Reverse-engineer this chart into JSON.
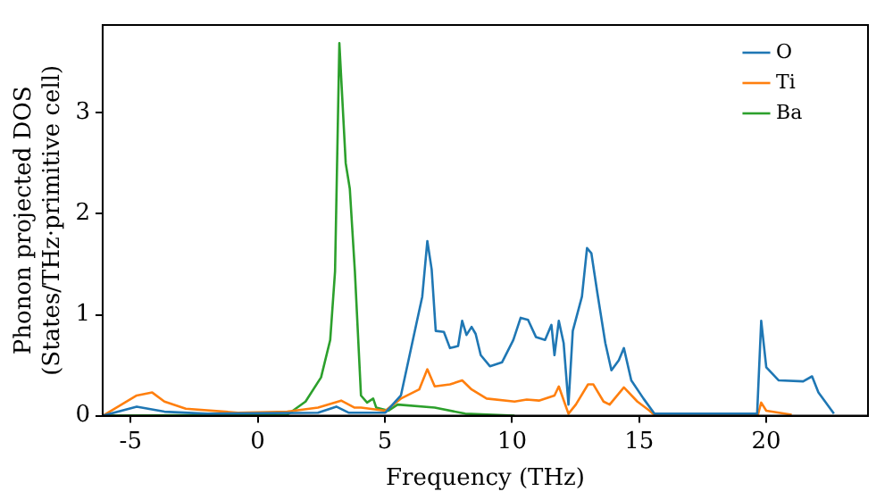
{
  "chart_data": {
    "type": "line",
    "xlabel": "Frequency (THz)",
    "ylabel": "Phonon projected DOS\n(States/THz·primitive cell)",
    "xlim": [
      -6.1,
      24
    ],
    "xticks": [
      -5,
      0,
      5,
      10,
      15,
      20
    ],
    "ylim": [
      0,
      3.87
    ],
    "yticks": [
      0,
      1,
      2,
      3
    ],
    "grid": false,
    "legend": "top right",
    "marker": "none",
    "line_style": "solid",
    "series": [
      {
        "name": "O",
        "color": "#1f77b4",
        "x": [
          -6.09,
          -4.76,
          -3.67,
          -1.98,
          2.37,
          3.09,
          3.57,
          5.02,
          5.63,
          6.23,
          6.47,
          6.67,
          6.84,
          7.0,
          7.32,
          7.56,
          7.88,
          8.04,
          8.21,
          8.41,
          8.57,
          8.77,
          9.13,
          9.61,
          10.05,
          10.34,
          10.63,
          10.94,
          11.3,
          11.55,
          11.67,
          11.84,
          12.03,
          12.22,
          12.39,
          12.75,
          12.95,
          13.12,
          13.36,
          13.67,
          13.91,
          14.2,
          14.4,
          14.69,
          15.17,
          15.6,
          19.64,
          19.8,
          20.0,
          20.49,
          21.45,
          21.8,
          22.05,
          22.66
        ],
        "values": [
          0.0,
          0.09,
          0.04,
          0.02,
          0.03,
          0.09,
          0.03,
          0.03,
          0.2,
          0.9,
          1.18,
          1.73,
          1.45,
          0.84,
          0.83,
          0.67,
          0.69,
          0.94,
          0.8,
          0.88,
          0.81,
          0.6,
          0.49,
          0.53,
          0.75,
          0.97,
          0.95,
          0.78,
          0.75,
          0.9,
          0.6,
          0.94,
          0.72,
          0.11,
          0.84,
          1.18,
          1.66,
          1.61,
          1.21,
          0.72,
          0.45,
          0.55,
          0.67,
          0.35,
          0.17,
          0.02,
          0.02,
          0.94,
          0.48,
          0.35,
          0.34,
          0.39,
          0.23,
          0.02
        ]
      },
      {
        "name": "Ti",
        "color": "#ff7f0e",
        "x": [
          -6.09,
          -4.76,
          -4.15,
          -3.67,
          -2.83,
          -0.78,
          1.16,
          2.37,
          3.28,
          3.81,
          4.06,
          5.02,
          5.63,
          6.35,
          6.67,
          6.96,
          7.56,
          8.04,
          8.41,
          9.0,
          10.1,
          10.58,
          11.06,
          11.67,
          11.84,
          12.22,
          12.51,
          12.99,
          13.2,
          13.6,
          13.84,
          14.4,
          14.93,
          15.41,
          15.63,
          19.66,
          19.8,
          20.0,
          21.0
        ],
        "values": [
          0.0,
          0.2,
          0.23,
          0.14,
          0.07,
          0.03,
          0.04,
          0.08,
          0.15,
          0.08,
          0.08,
          0.05,
          0.17,
          0.26,
          0.46,
          0.29,
          0.31,
          0.35,
          0.26,
          0.17,
          0.14,
          0.16,
          0.15,
          0.2,
          0.29,
          0.02,
          0.11,
          0.31,
          0.31,
          0.14,
          0.11,
          0.28,
          0.14,
          0.05,
          0.0,
          0.0,
          0.13,
          0.05,
          0.01
        ]
      },
      {
        "name": "Ba",
        "color": "#2ca02c",
        "x": [
          -6.09,
          1.16,
          1.88,
          2.49,
          2.85,
          3.04,
          3.21,
          3.46,
          3.62,
          3.82,
          4.06,
          4.3,
          4.54,
          4.66,
          5.14,
          5.5,
          6.96,
          8.16,
          10.1
        ],
        "values": [
          0.0,
          0.01,
          0.14,
          0.38,
          0.75,
          1.43,
          3.69,
          2.5,
          2.25,
          1.43,
          0.2,
          0.13,
          0.17,
          0.08,
          0.05,
          0.11,
          0.08,
          0.02,
          0.0
        ]
      }
    ]
  }
}
